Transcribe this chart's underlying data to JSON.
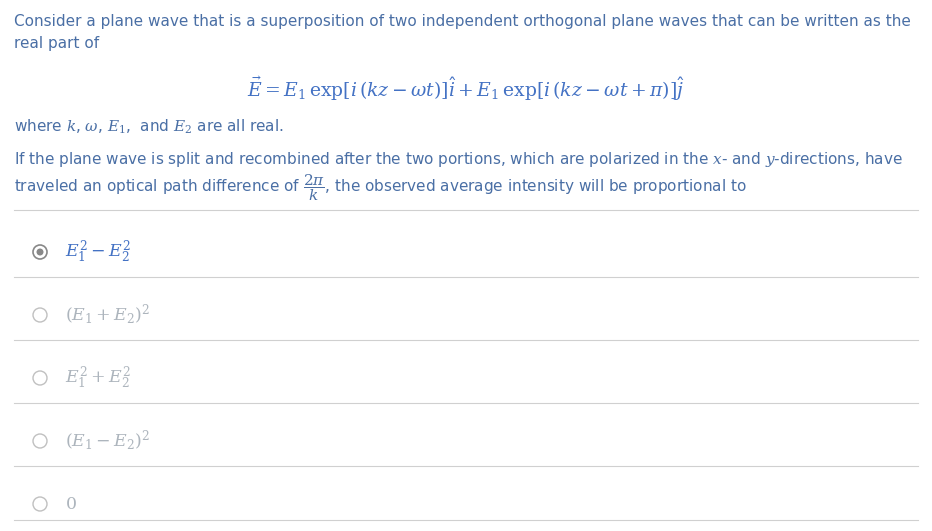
{
  "bg_color": "#ffffff",
  "body_text_color": "#4a6fa5",
  "math_color": "#4472c4",
  "option_selected_color": "#4472c4",
  "option_unselected_color": "#adb5bd",
  "radio_selected_edge": "#888888",
  "radio_unselected_edge": "#aaaaaa",
  "divider_color": "#d0d0d0",
  "figsize": [
    9.32,
    5.31
  ],
  "dpi": 100,
  "fontsize_body": 11.0,
  "fontsize_eq": 13.5,
  "fontsize_opt": 12.5
}
